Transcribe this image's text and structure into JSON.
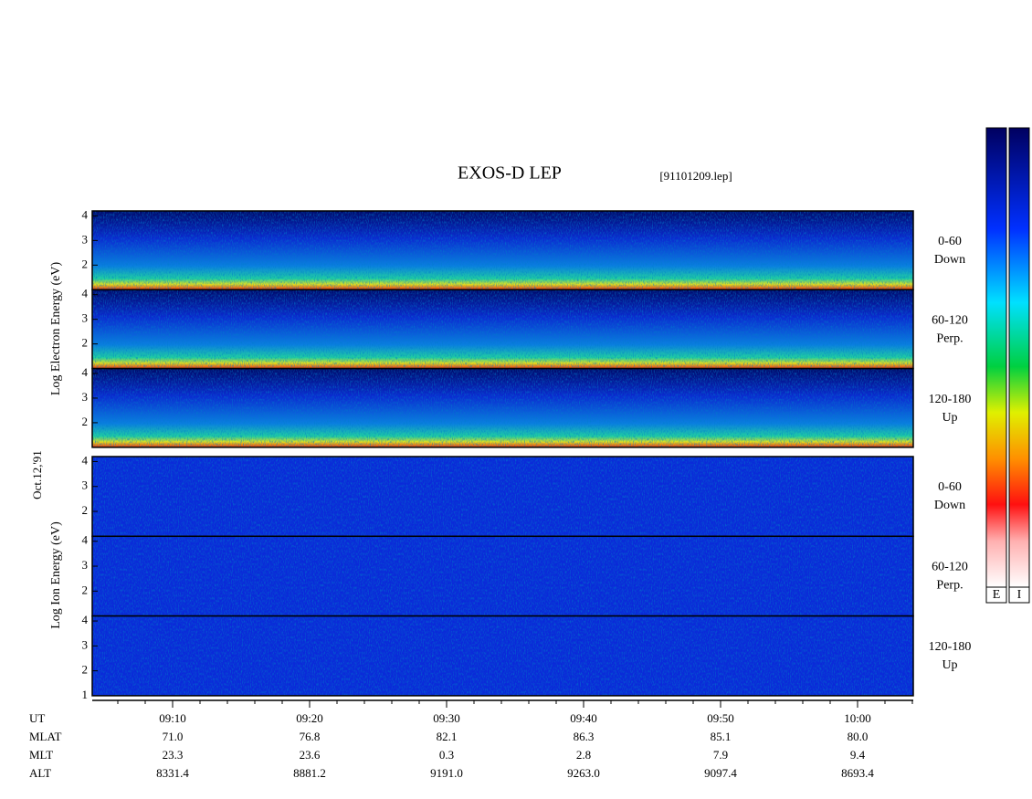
{
  "title": "EXOS-D LEP",
  "file": "[91101209.lep]",
  "date": "Oct.12,'91",
  "electron": {
    "title": "Log Electron Energy (eV)",
    "ylim": [
      1,
      4.2
    ],
    "panels": [
      {
        "label": [
          "0-60",
          "Down"
        ],
        "yticks": [
          2,
          3,
          4
        ]
      },
      {
        "label": [
          "60-120",
          "Perp."
        ],
        "yticks": [
          2,
          3,
          4
        ]
      },
      {
        "label": [
          "120-180",
          "Up"
        ],
        "yticks": [
          2,
          3,
          4
        ]
      }
    ]
  },
  "ion": {
    "title": "Log Ion Energy (eV)",
    "ylim": [
      1,
      4.2
    ],
    "panels": [
      {
        "label": [
          "0-60",
          "Down"
        ],
        "yticks": [
          2,
          3,
          4
        ]
      },
      {
        "label": [
          "60-120",
          "Perp."
        ],
        "yticks": [
          2,
          3,
          4
        ]
      },
      {
        "label": [
          "120-180",
          "Up"
        ],
        "yticks": [
          1,
          2,
          3,
          4
        ]
      }
    ]
  },
  "orbit": {
    "rows": [
      {
        "name": "UT",
        "values": [
          "09:10",
          "09:20",
          "09:30",
          "09:40",
          "09:50",
          "10:00"
        ]
      },
      {
        "name": "MLAT",
        "values": [
          "71.0",
          "76.8",
          "82.1",
          "86.3",
          "85.1",
          "80.0"
        ]
      },
      {
        "name": "MLT",
        "values": [
          "23.3",
          "23.6",
          "0.3",
          "2.8",
          "7.9",
          "9.4"
        ]
      },
      {
        "name": "ALT",
        "values": [
          "8331.4",
          "8881.2",
          "9191.0",
          "9263.0",
          "9097.4",
          "8693.4"
        ]
      }
    ]
  },
  "colorbar": {
    "labels": [
      "E",
      "I"
    ]
  }
}
